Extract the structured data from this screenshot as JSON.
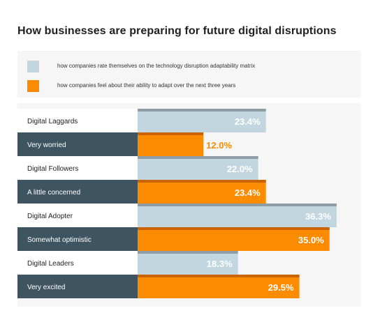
{
  "colors": {
    "light_bar": "#c2d6df",
    "light_bar_top": "#8e9ca4",
    "orange_bar": "#fb8b00",
    "orange_bar_top": "#c96400",
    "dark_label_bg": "#3e5461",
    "light_label_bg": "#ffffff",
    "orange_text": "#fb8b00",
    "dark_text": "#222222",
    "label_on_dark": "#ffffff"
  },
  "chart_data": {
    "type": "bar",
    "orientation": "horizontal",
    "title": "How businesses are preparing for future digital disruptions",
    "categories": [
      "Digital Laggards",
      "Very worried",
      "Digital Followers",
      "A little concerned",
      "Digital Adopter",
      "Somewhat optimistic",
      "Digital Leaders",
      "Very excited"
    ],
    "values": [
      23.4,
      12.0,
      22.0,
      23.4,
      36.3,
      35.0,
      18.3,
      29.5
    ],
    "value_labels": [
      "23.4%",
      "12.0%",
      "22.0%",
      "23.4%",
      "36.3%",
      "35.0%",
      "18.3%",
      "29.5%"
    ],
    "series_index": [
      0,
      1,
      0,
      1,
      0,
      1,
      0,
      1
    ],
    "series": [
      {
        "name": "how companies rate themselves on the technology disruption adaptability matrix"
      },
      {
        "name": "how companies feel about their ability to adapt over the next three years"
      }
    ],
    "xlim": [
      0,
      40
    ],
    "grid": false,
    "legend_position": "top"
  }
}
